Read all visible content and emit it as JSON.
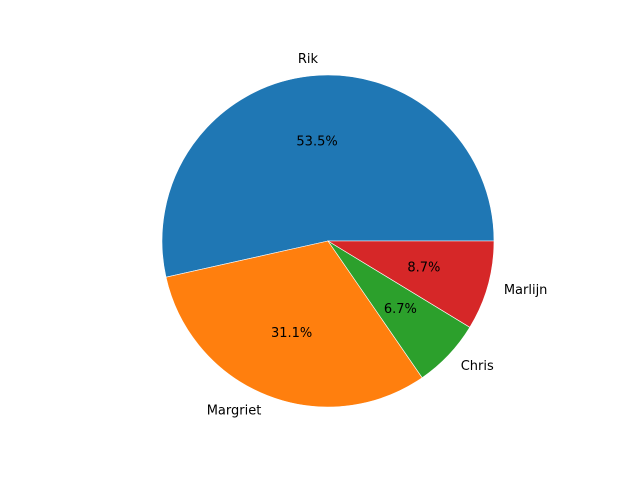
{
  "chart_data": {
    "type": "pie",
    "title": "",
    "slices": [
      {
        "label": "Rik",
        "value": 53.5,
        "pct_label": "53.5%",
        "color": "#1f77b4"
      },
      {
        "label": "Margriet",
        "value": 31.1,
        "pct_label": "31.1%",
        "color": "#ff7f0e"
      },
      {
        "label": "Chris",
        "value": 6.7,
        "pct_label": "6.7%",
        "color": "#2ca02c"
      },
      {
        "label": "Marlijn",
        "value": 8.7,
        "pct_label": "8.7%",
        "color": "#d62728"
      }
    ],
    "start_angle_deg": 0,
    "direction": "counterclockwise",
    "legend": "none"
  }
}
